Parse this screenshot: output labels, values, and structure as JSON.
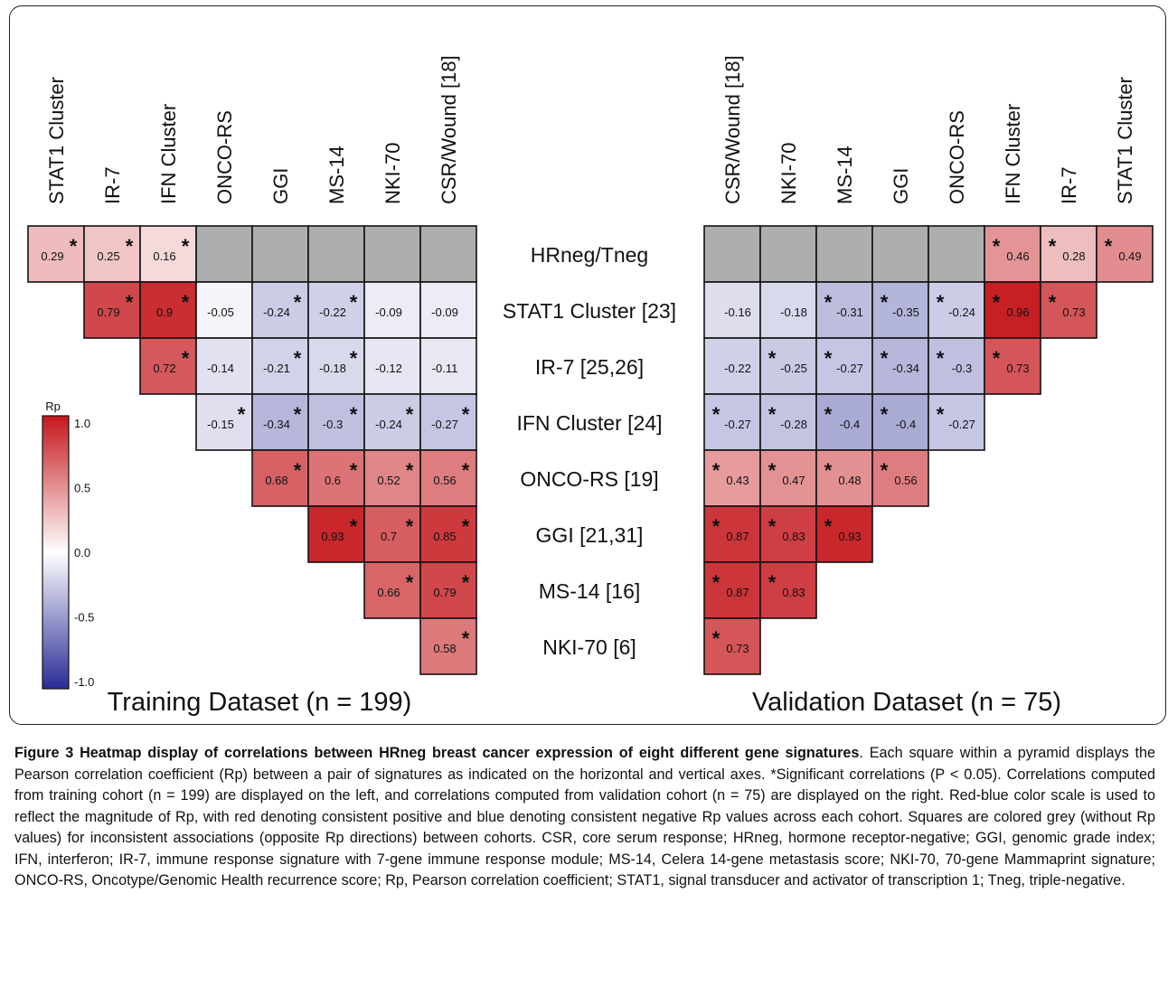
{
  "chart_data": {
    "type": "heatmap",
    "legend": {
      "title": "Rp",
      "ticks": [
        "1.0",
        "0.5",
        "0.0",
        "-0.5",
        "-1.0"
      ],
      "range": [
        -1,
        1
      ]
    },
    "row_labels": [
      "HRneg/Tneg",
      "STAT1 Cluster [23]",
      "IR-7 [25,26]",
      "IFN Cluster [24]",
      "ONCO-RS [19]",
      "GGI [21,31]",
      "MS-14 [16]",
      "NKI-70 [6]"
    ],
    "training": {
      "title": "Training Dataset (n = 199)",
      "columns": [
        "STAT1 Cluster",
        "IR-7",
        "IFN Cluster",
        "ONCO-RS",
        "GGI",
        "MS-14",
        "NKI-70",
        "CSR/Wound [18]"
      ],
      "cells": [
        {
          "row": 0,
          "col": 0,
          "value": 0.29,
          "sig": true
        },
        {
          "row": 0,
          "col": 1,
          "value": 0.25,
          "sig": true
        },
        {
          "row": 0,
          "col": 2,
          "value": 0.16,
          "sig": true
        },
        {
          "row": 0,
          "col": 3,
          "value": null,
          "sig": false
        },
        {
          "row": 0,
          "col": 4,
          "value": null,
          "sig": false
        },
        {
          "row": 0,
          "col": 5,
          "value": null,
          "sig": false
        },
        {
          "row": 0,
          "col": 6,
          "value": null,
          "sig": false
        },
        {
          "row": 0,
          "col": 7,
          "value": null,
          "sig": false
        },
        {
          "row": 1,
          "col": 1,
          "value": 0.79,
          "sig": true
        },
        {
          "row": 1,
          "col": 2,
          "value": 0.9,
          "sig": true
        },
        {
          "row": 1,
          "col": 3,
          "value": -0.05,
          "sig": false
        },
        {
          "row": 1,
          "col": 4,
          "value": -0.24,
          "sig": true
        },
        {
          "row": 1,
          "col": 5,
          "value": -0.22,
          "sig": true
        },
        {
          "row": 1,
          "col": 6,
          "value": -0.09,
          "sig": false
        },
        {
          "row": 1,
          "col": 7,
          "value": -0.09,
          "sig": false
        },
        {
          "row": 2,
          "col": 2,
          "value": 0.72,
          "sig": true
        },
        {
          "row": 2,
          "col": 3,
          "value": -0.14,
          "sig": false
        },
        {
          "row": 2,
          "col": 4,
          "value": -0.21,
          "sig": true
        },
        {
          "row": 2,
          "col": 5,
          "value": -0.18,
          "sig": true
        },
        {
          "row": 2,
          "col": 6,
          "value": -0.12,
          "sig": false
        },
        {
          "row": 2,
          "col": 7,
          "value": -0.11,
          "sig": false
        },
        {
          "row": 3,
          "col": 3,
          "value": -0.15,
          "sig": true
        },
        {
          "row": 3,
          "col": 4,
          "value": -0.34,
          "sig": true
        },
        {
          "row": 3,
          "col": 5,
          "value": -0.3,
          "sig": true
        },
        {
          "row": 3,
          "col": 6,
          "value": -0.24,
          "sig": true
        },
        {
          "row": 3,
          "col": 7,
          "value": -0.27,
          "sig": true
        },
        {
          "row": 4,
          "col": 4,
          "value": 0.68,
          "sig": true
        },
        {
          "row": 4,
          "col": 5,
          "value": 0.6,
          "sig": true
        },
        {
          "row": 4,
          "col": 6,
          "value": 0.52,
          "sig": true
        },
        {
          "row": 4,
          "col": 7,
          "value": 0.56,
          "sig": true
        },
        {
          "row": 5,
          "col": 5,
          "value": 0.93,
          "sig": true
        },
        {
          "row": 5,
          "col": 6,
          "value": 0.7,
          "sig": true
        },
        {
          "row": 5,
          "col": 7,
          "value": 0.85,
          "sig": true
        },
        {
          "row": 6,
          "col": 6,
          "value": 0.66,
          "sig": true
        },
        {
          "row": 6,
          "col": 7,
          "value": 0.79,
          "sig": true
        },
        {
          "row": 7,
          "col": 7,
          "value": 0.58,
          "sig": true
        }
      ]
    },
    "validation": {
      "title": "Validation Dataset (n = 75)",
      "columns": [
        "CSR/Wound [18]",
        "NKI-70",
        "MS-14",
        "GGI",
        "ONCO-RS",
        "IFN Cluster",
        "IR-7",
        "STAT1 Cluster"
      ],
      "cells": [
        {
          "row": 0,
          "col": 0,
          "value": null,
          "sig": false
        },
        {
          "row": 0,
          "col": 1,
          "value": null,
          "sig": false
        },
        {
          "row": 0,
          "col": 2,
          "value": null,
          "sig": false
        },
        {
          "row": 0,
          "col": 3,
          "value": null,
          "sig": false
        },
        {
          "row": 0,
          "col": 4,
          "value": null,
          "sig": false
        },
        {
          "row": 0,
          "col": 5,
          "value": 0.46,
          "sig": true
        },
        {
          "row": 0,
          "col": 6,
          "value": 0.28,
          "sig": true
        },
        {
          "row": 0,
          "col": 7,
          "value": 0.49,
          "sig": true
        },
        {
          "row": 1,
          "col": 0,
          "value": -0.16,
          "sig": false
        },
        {
          "row": 1,
          "col": 1,
          "value": -0.18,
          "sig": false
        },
        {
          "row": 1,
          "col": 2,
          "value": -0.31,
          "sig": true
        },
        {
          "row": 1,
          "col": 3,
          "value": -0.35,
          "sig": true
        },
        {
          "row": 1,
          "col": 4,
          "value": -0.24,
          "sig": true
        },
        {
          "row": 1,
          "col": 5,
          "value": 0.96,
          "sig": true
        },
        {
          "row": 1,
          "col": 6,
          "value": 0.73,
          "sig": true
        },
        {
          "row": 2,
          "col": 0,
          "value": -0.22,
          "sig": false
        },
        {
          "row": 2,
          "col": 1,
          "value": -0.25,
          "sig": true
        },
        {
          "row": 2,
          "col": 2,
          "value": -0.27,
          "sig": true
        },
        {
          "row": 2,
          "col": 3,
          "value": -0.34,
          "sig": true
        },
        {
          "row": 2,
          "col": 4,
          "value": -0.3,
          "sig": true
        },
        {
          "row": 2,
          "col": 5,
          "value": 0.73,
          "sig": true
        },
        {
          "row": 3,
          "col": 0,
          "value": -0.27,
          "sig": true
        },
        {
          "row": 3,
          "col": 1,
          "value": -0.28,
          "sig": true
        },
        {
          "row": 3,
          "col": 2,
          "value": -0.4,
          "sig": true
        },
        {
          "row": 3,
          "col": 3,
          "value": -0.4,
          "sig": true
        },
        {
          "row": 3,
          "col": 4,
          "value": -0.27,
          "sig": true
        },
        {
          "row": 4,
          "col": 0,
          "value": 0.43,
          "sig": true
        },
        {
          "row": 4,
          "col": 1,
          "value": 0.47,
          "sig": true
        },
        {
          "row": 4,
          "col": 2,
          "value": 0.48,
          "sig": true
        },
        {
          "row": 4,
          "col": 3,
          "value": 0.56,
          "sig": true
        },
        {
          "row": 5,
          "col": 0,
          "value": 0.87,
          "sig": true
        },
        {
          "row": 5,
          "col": 1,
          "value": 0.83,
          "sig": true
        },
        {
          "row": 5,
          "col": 2,
          "value": 0.93,
          "sig": true
        },
        {
          "row": 6,
          "col": 0,
          "value": 0.87,
          "sig": true
        },
        {
          "row": 6,
          "col": 1,
          "value": 0.83,
          "sig": true
        },
        {
          "row": 7,
          "col": 0,
          "value": 0.73,
          "sig": true
        }
      ]
    },
    "colors": {
      "positive": "#c4171c",
      "neutral": "#ffffff",
      "negative": "#2a2c96",
      "inconsistent": "#aeaeae"
    }
  },
  "caption": {
    "title": "Figure 3 Heatmap display of correlations between HRneg breast cancer expression of eight different gene signatures",
    "body": ". Each square within a pyramid displays the Pearson correlation coefficient (Rp) between a pair of signatures as indicated on the horizontal and vertical axes. *Significant correlations (P < 0.05). Correlations computed from training cohort (n = 199) are displayed on the left, and correlations computed from validation cohort (n = 75) are displayed on the right. Red-blue color scale is used to reflect the magnitude of Rp, with red denoting consistent positive and blue denoting consistent negative Rp values across each cohort. Squares are colored grey (without Rp values) for inconsistent associations (opposite Rp directions) between cohorts. CSR, core serum response; HRneg, hormone receptor-negative; GGI, genomic grade index; IFN, interferon; IR-7, immune response signature with 7-gene immune response module; MS-14, Celera 14-gene metastasis score; NKI-70, 70-gene Mammaprint signature; ONCO-RS, Oncotype/Genomic Health recurrence score; Rp, Pearson correlation coefficient; STAT1, signal transducer and activator of transcription 1; Tneg, triple-negative."
  }
}
